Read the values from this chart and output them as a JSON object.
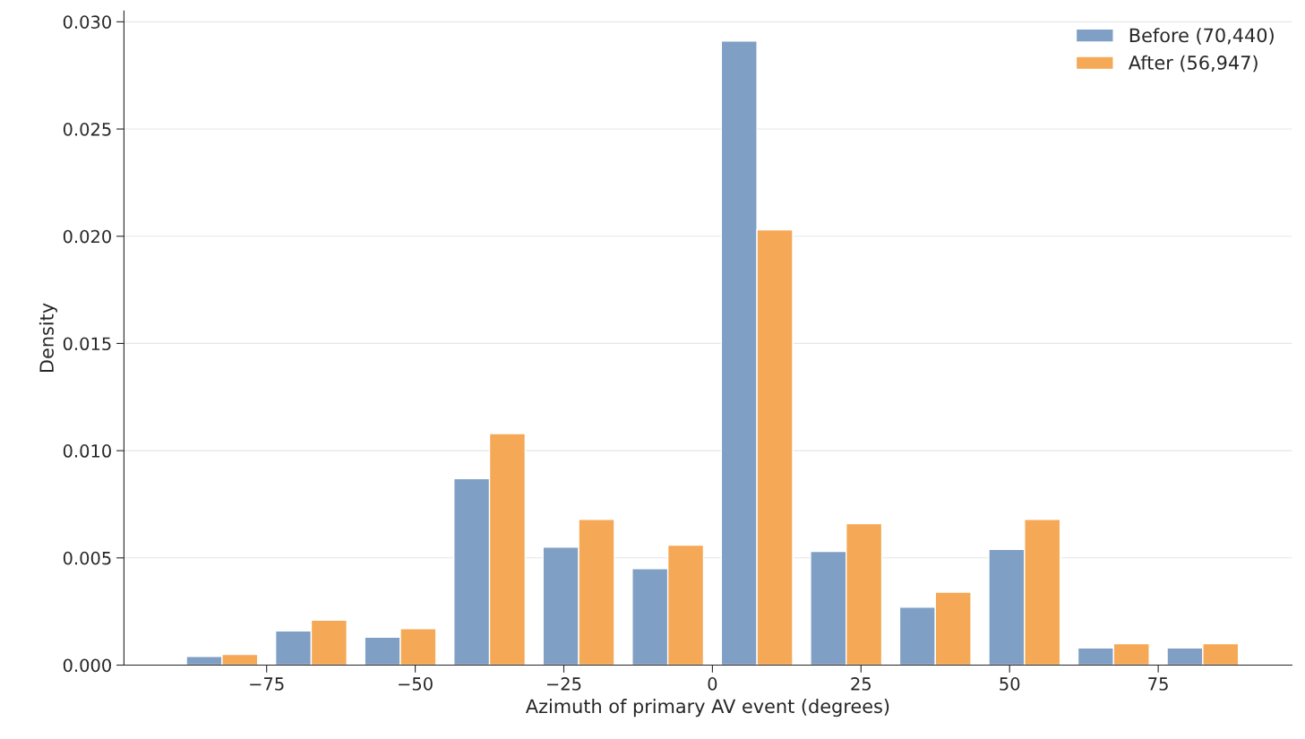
{
  "chart_data": {
    "type": "histogram",
    "xlabel": "Azimuth of primary AV event (degrees)",
    "ylabel": "Density",
    "bins": [
      -90,
      -75,
      -60,
      -45,
      -30,
      -15,
      0,
      15,
      30,
      45,
      60,
      75,
      90
    ],
    "series": [
      {
        "name": "Before (70,440)",
        "color": "#809fc4",
        "values": [
          0.0004,
          0.0016,
          0.0013,
          0.0087,
          0.0055,
          0.0045,
          0.0291,
          0.0053,
          0.0027,
          0.0054,
          0.0008,
          0.0008
        ]
      },
      {
        "name": "After (56,947)",
        "color": "#f5a855",
        "values": [
          0.0005,
          0.0021,
          0.0017,
          0.0108,
          0.0068,
          0.0056,
          0.0203,
          0.0066,
          0.0034,
          0.0068,
          0.001,
          0.001
        ]
      }
    ],
    "xlim": [
      -99,
      97.5
    ],
    "ylim": [
      0,
      0.0305
    ],
    "xticks": [
      {
        "value": -75,
        "label": "−75"
      },
      {
        "value": -50,
        "label": "−50"
      },
      {
        "value": -25,
        "label": "−25"
      },
      0,
      25,
      50,
      75
    ],
    "yticks": [
      {
        "value": 0,
        "label": "0.000"
      },
      {
        "value": 0.005,
        "label": "0.005"
      },
      {
        "value": 0.01,
        "label": "0.010"
      },
      {
        "value": 0.015,
        "label": "0.015"
      },
      {
        "value": 0.02,
        "label": "0.020"
      },
      {
        "value": 0.025,
        "label": "0.025"
      },
      {
        "value": 0.03,
        "label": "0.030"
      }
    ],
    "grid": "y",
    "legend": "top right"
  }
}
